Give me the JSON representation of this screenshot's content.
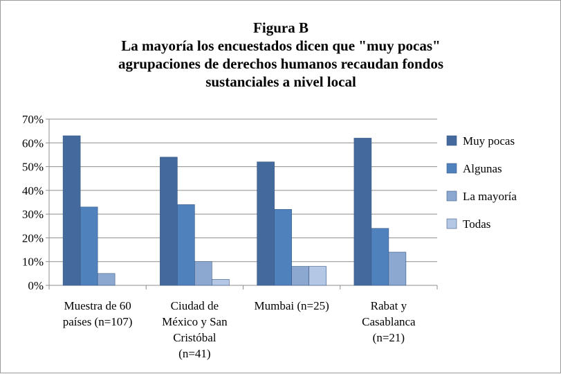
{
  "chart_data": {
    "type": "bar",
    "title_lines": [
      "Figura B",
      "La mayoría los encuestados dicen que \"muy pocas\"",
      "agrupaciones de derechos humanos recaudan fondos",
      "sustanciales a nivel local"
    ],
    "categories": [
      [
        "Muestra de 60",
        "países (n=107)"
      ],
      [
        "Ciudad de",
        "México y San",
        "Cristóbal",
        "(n=41)"
      ],
      [
        "Mumbai (n=25)"
      ],
      [
        "Rabat y",
        "Casablanca",
        "(n=21)"
      ]
    ],
    "series": [
      {
        "name": "Muy pocas",
        "color": "#44699c",
        "values": [
          63,
          54,
          52,
          62
        ]
      },
      {
        "name": "Algunas",
        "color": "#4f82bd",
        "values": [
          33,
          34,
          32,
          24
        ]
      },
      {
        "name": "La mayoría",
        "color": "#8ca7d0",
        "values": [
          5,
          10,
          8,
          14
        ]
      },
      {
        "name": "Todas",
        "color": "#b4c7e4",
        "values": [
          0,
          2.5,
          8,
          0
        ]
      }
    ],
    "yticks": [
      "0%",
      "10%",
      "20%",
      "30%",
      "40%",
      "50%",
      "60%",
      "70%"
    ],
    "ylim": [
      0,
      70
    ],
    "grid": true,
    "legend_position": "right"
  }
}
